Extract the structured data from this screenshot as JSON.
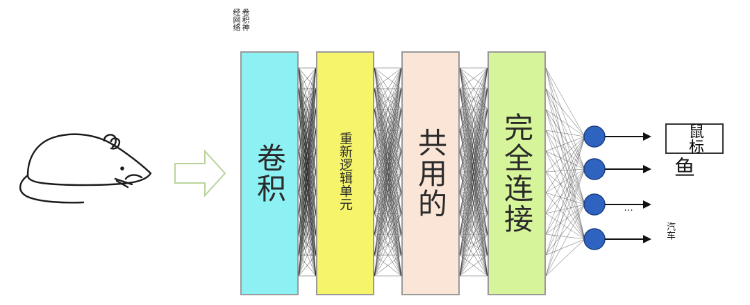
{
  "diagram": {
    "title": "卷积神经网络",
    "layers": [
      {
        "label": "卷积",
        "color": "#8df0f2"
      },
      {
        "label": "重新逻辑单元",
        "color": "#f5f46b"
      },
      {
        "label": "共用的",
        "color": "#fae5d6"
      },
      {
        "label": "完全连接",
        "color": "#d6f59a"
      }
    ],
    "outputs": [
      {
        "label": "鼠标"
      },
      {
        "label": "鱼"
      },
      {
        "label": "..."
      },
      {
        "label": "汽车"
      }
    ],
    "colors": {
      "node": "#2f63c0",
      "mesh": "#1e1e1e",
      "arrow": "#b9d39b",
      "outline": "#222222"
    },
    "icons": {
      "input": "mouse-icon",
      "flow": "hollow-right-arrow-icon"
    }
  }
}
